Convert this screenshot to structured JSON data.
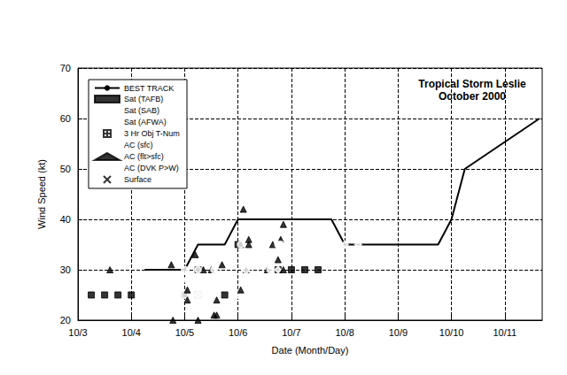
{
  "chart_data": {
    "type": "scatter",
    "title": "Tropical Storm Leslie",
    "subtitle": "October 2000",
    "x_label": "Date (Month/Day)",
    "y_label": "Wind Speed (kt)",
    "xlim": [
      3,
      11.7
    ],
    "xticks": [
      {
        "value": 3,
        "label": "10/3"
      },
      {
        "value": 4,
        "label": "10/4"
      },
      {
        "value": 5,
        "label": "10/5"
      },
      {
        "value": 6,
        "label": "10/6"
      },
      {
        "value": 7,
        "label": "10/7"
      },
      {
        "value": 8,
        "label": "10/8"
      },
      {
        "value": 9,
        "label": "10/9"
      },
      {
        "value": 10,
        "label": "10/10"
      },
      {
        "value": 11,
        "label": "10/11"
      }
    ],
    "ylim": [
      20,
      70
    ],
    "yticks": [
      20,
      30,
      40,
      50,
      60,
      70
    ],
    "grid": true,
    "legend": "upper left",
    "series": [
      {
        "name": "BEST TRACK",
        "type": "line",
        "color": "#000000",
        "marker": "none",
        "line_style": "solid",
        "x": [
          4.25,
          5.0,
          5.25,
          5.75,
          6.0,
          7.75,
          8.0,
          9.75,
          10.0,
          10.25,
          11.65
        ],
        "values": [
          30,
          30,
          35,
          35,
          40,
          40,
          35,
          35,
          40,
          50,
          60
        ]
      },
      {
        "name": "Sat (TAFB)",
        "type": "scatter",
        "color": "#000000",
        "marker": "square",
        "x": [
          3.25,
          3.5,
          3.75,
          4.0,
          5.0,
          5.25,
          5.25,
          5.75,
          6.0,
          6.75,
          7.0,
          7.25,
          7.5
        ],
        "values": [
          25,
          25,
          25,
          25,
          25,
          25,
          30,
          25,
          35,
          30,
          30,
          30,
          30
        ]
      },
      {
        "name": "Sat (SAB)",
        "type": "scatter",
        "color": "#000000",
        "marker": "square-open",
        "x": [
          4.75,
          5.0,
          5.25,
          5.5,
          6.0,
          6.25,
          7.25,
          7.5
        ],
        "values": [
          25,
          25,
          25,
          25,
          25,
          25,
          25,
          25
        ]
      },
      {
        "name": "Sat (AFWA)",
        "type": "scatter",
        "color": "#000000",
        "marker": "diamond-open",
        "x": [
          4.75,
          5.25,
          6.75,
          7.75,
          8.0,
          8.25
        ],
        "values": [
          25,
          25,
          30,
          25,
          35,
          35
        ]
      },
      {
        "name": "3 Hr Obj T-Num",
        "type": "scatter",
        "color": "#000000",
        "marker": "square-cross",
        "x": [],
        "values": []
      },
      {
        "name": "AC (sfc)",
        "type": "scatter",
        "color": "#000000",
        "marker": "triangle-down-open",
        "x": [],
        "values": []
      },
      {
        "name": "AC (flt>sfc)",
        "type": "scatter",
        "color": "#000000",
        "marker": "triangle",
        "x": [
          3.6,
          4.75,
          4.78,
          5.05,
          5.05,
          5.2,
          5.25,
          5.35,
          5.5,
          5.55,
          5.6,
          5.6,
          5.7,
          6.05,
          6.05,
          6.1,
          6.15,
          6.2,
          6.2,
          6.55,
          6.65,
          6.75,
          6.8,
          6.85,
          6.85
        ],
        "values": [
          30,
          31,
          20,
          26,
          24,
          33,
          20,
          30,
          30,
          21,
          21,
          24,
          31,
          26,
          35,
          42,
          30,
          36,
          35,
          30,
          35,
          32,
          36,
          39,
          30
        ]
      },
      {
        "name": "AC (DVK P>W)",
        "type": "scatter",
        "color": "#000000",
        "marker": "circle-open",
        "x": [
          3.65,
          4.75,
          4.95,
          5.0,
          5.25,
          5.45,
          5.55,
          5.65,
          6.05,
          6.15,
          6.2,
          6.25,
          6.6,
          6.6,
          6.65,
          6.75,
          6.8
        ],
        "values": [
          28,
          25,
          28,
          30,
          30,
          25,
          30,
          28,
          35,
          30,
          33,
          33,
          31,
          30,
          33,
          35,
          35
        ]
      },
      {
        "name": "Surface",
        "type": "scatter",
        "color": "#000000",
        "marker": "x",
        "x": [],
        "values": []
      }
    ]
  }
}
